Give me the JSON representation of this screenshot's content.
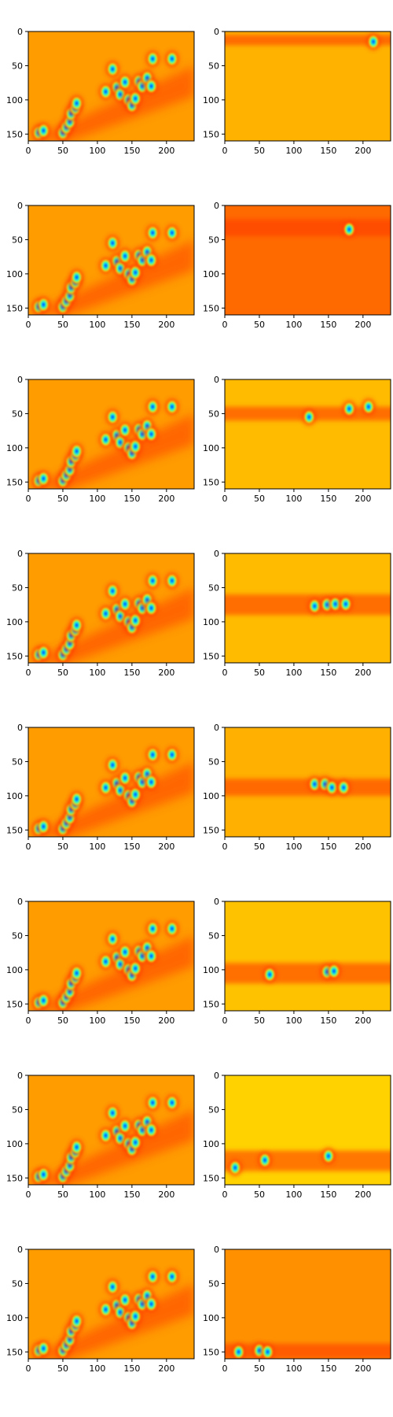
{
  "chart_data": {
    "type": "heatmap",
    "layout": {
      "rows": 8,
      "cols": 2
    },
    "colormap": "jet",
    "axes": {
      "xlim": [
        0,
        240
      ],
      "ylim": [
        160,
        0
      ],
      "xticks": [
        0,
        50,
        100,
        150,
        200
      ],
      "yticks": [
        0,
        50,
        100,
        150
      ],
      "xtick_labels": [
        "0",
        "50",
        "100",
        "150",
        "200"
      ],
      "ytick_labels": [
        "0",
        "50",
        "100",
        "150"
      ]
    },
    "left_panels_description": "Same activation map repeated in every row: orange/red background with green-blue blobs along a diagonal band",
    "right_panels": [
      {
        "row": 1,
        "band_y": [
          5,
          20
        ],
        "background": "#ffb200",
        "blobs": [
          [
            215,
            15
          ]
        ]
      },
      {
        "row": 2,
        "band_y": [
          20,
          45
        ],
        "background": "#ff6a00",
        "blobs": [
          [
            180,
            35
          ]
        ]
      },
      {
        "row": 3,
        "band_y": [
          40,
          60
        ],
        "background": "#ffbb00",
        "blobs": [
          [
            122,
            55
          ],
          [
            180,
            43
          ],
          [
            208,
            40
          ]
        ]
      },
      {
        "row": 4,
        "band_y": [
          60,
          90
        ],
        "background": "#ffbb00",
        "blobs": [
          [
            130,
            77
          ],
          [
            148,
            75
          ],
          [
            160,
            74
          ],
          [
            175,
            74
          ]
        ]
      },
      {
        "row": 5,
        "band_y": [
          75,
          100
        ],
        "background": "#ffb000",
        "blobs": [
          [
            130,
            83
          ],
          [
            145,
            83
          ],
          [
            155,
            88
          ],
          [
            172,
            88
          ]
        ]
      },
      {
        "row": 6,
        "band_y": [
          90,
          120
        ],
        "background": "#ffc200",
        "blobs": [
          [
            65,
            107
          ],
          [
            148,
            103
          ],
          [
            158,
            102
          ]
        ]
      },
      {
        "row": 7,
        "band_y": [
          110,
          140
        ],
        "background": "#ffd200",
        "blobs": [
          [
            15,
            135
          ],
          [
            58,
            124
          ],
          [
            150,
            118
          ]
        ]
      },
      {
        "row": 8,
        "band_y": [
          138,
          160
        ],
        "background": "#ff9000",
        "blobs": [
          [
            20,
            150
          ],
          [
            50,
            148
          ],
          [
            62,
            150
          ]
        ]
      }
    ],
    "colors": {
      "bg_left": "#ff9c00",
      "red": "#ff3a00",
      "yellow": "#ffdf00",
      "green": "#55ffa0",
      "cyan": "#00e4ff",
      "blue": "#0030ff"
    }
  }
}
